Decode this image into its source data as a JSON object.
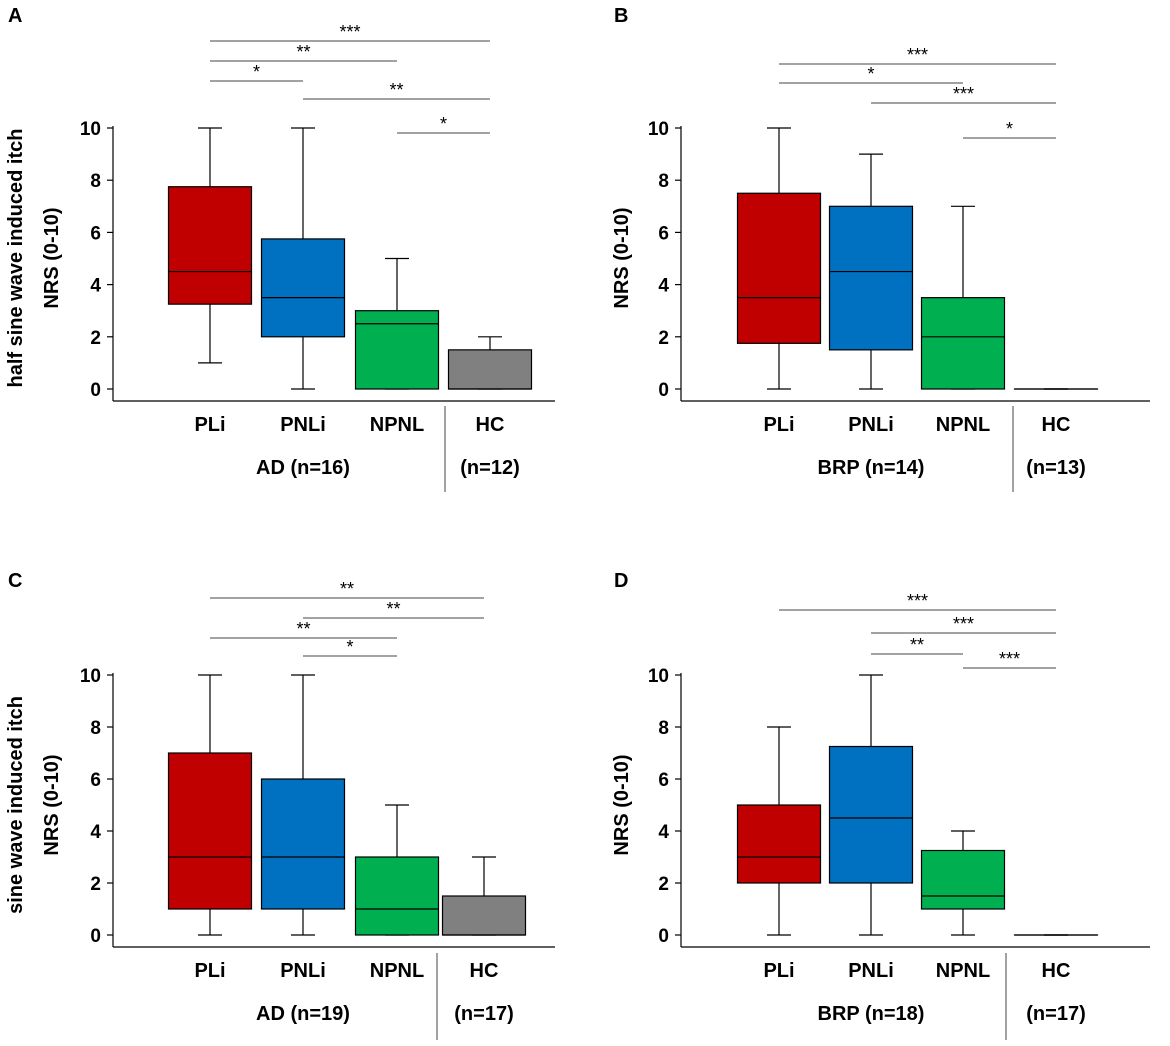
{
  "colors": {
    "PLi": "#c00000",
    "PNLi": "#0070c0",
    "NPNL": "#00b050",
    "HC": "#808080",
    "line": "#000000",
    "sig_line": "#444444"
  },
  "chart_data": [
    {
      "id": "A",
      "panel_label": "A",
      "type": "box",
      "ylabel_outer": "half sine wave induced itch",
      "ylabel": "NRS (0-10)",
      "ylim": [
        0,
        10
      ],
      "yticks": [
        "0",
        "2",
        "4",
        "6",
        "8",
        "10"
      ],
      "categories": [
        "PLi",
        "PNLi",
        "NPNL",
        "HC"
      ],
      "group_label": "AD (n=16)",
      "hc_label": "(n=12)",
      "boxes": [
        {
          "name": "PLi",
          "min": 1,
          "q1": 3.25,
          "median": 4.5,
          "q3": 7.75,
          "max": 10
        },
        {
          "name": "PNLi",
          "min": 0,
          "q1": 2,
          "median": 3.5,
          "q3": 5.75,
          "max": 10
        },
        {
          "name": "NPNL",
          "min": 0,
          "q1": 0,
          "median": 2.5,
          "q3": 3,
          "max": 5
        },
        {
          "name": "HC",
          "min": 0,
          "q1": 0,
          "median": 0,
          "q3": 1.5,
          "max": 2
        }
      ],
      "significance": [
        {
          "from": "PLi",
          "to": "HC",
          "label": "***"
        },
        {
          "from": "PLi",
          "to": "NPNL",
          "label": "**"
        },
        {
          "from": "PLi",
          "to": "PNLi",
          "label": "*"
        },
        {
          "from": "PNLi",
          "to": "HC",
          "label": "**"
        },
        {
          "from": "NPNL",
          "to": "HC",
          "label": "*"
        }
      ]
    },
    {
      "id": "B",
      "panel_label": "B",
      "type": "box",
      "ylabel": "NRS (0-10)",
      "ylim": [
        0,
        10
      ],
      "yticks": [
        "0",
        "2",
        "4",
        "6",
        "8",
        "10"
      ],
      "categories": [
        "PLi",
        "PNLi",
        "NPNL",
        "HC"
      ],
      "group_label": "BRP (n=14)",
      "hc_label": "(n=13)",
      "boxes": [
        {
          "name": "PLi",
          "min": 0,
          "q1": 1.75,
          "median": 3.5,
          "q3": 7.5,
          "max": 10
        },
        {
          "name": "PNLi",
          "min": 0,
          "q1": 1.5,
          "median": 4.5,
          "q3": 7,
          "max": 9
        },
        {
          "name": "NPNL",
          "min": 0,
          "q1": 0,
          "median": 2,
          "q3": 3.5,
          "max": 7
        },
        {
          "name": "HC",
          "min": 0,
          "q1": 0,
          "median": 0,
          "q3": 0,
          "max": 0
        }
      ],
      "significance": [
        {
          "from": "PLi",
          "to": "HC",
          "label": "***"
        },
        {
          "from": "PLi",
          "to": "NPNL",
          "label": "*"
        },
        {
          "from": "PNLi",
          "to": "HC",
          "label": "***"
        },
        {
          "from": "NPNL",
          "to": "HC",
          "label": "*"
        }
      ]
    },
    {
      "id": "C",
      "panel_label": "C",
      "type": "box",
      "ylabel_outer": "sine wave induced itch",
      "ylabel": "NRS (0-10)",
      "ylim": [
        0,
        10
      ],
      "yticks": [
        "0",
        "2",
        "4",
        "6",
        "8",
        "10"
      ],
      "categories": [
        "PLi",
        "PNLi",
        "NPNL",
        "HC"
      ],
      "group_label": "AD (n=19)",
      "hc_label": "(n=17)",
      "boxes": [
        {
          "name": "PLi",
          "min": 0,
          "q1": 1,
          "median": 3,
          "q3": 7,
          "max": 10
        },
        {
          "name": "PNLi",
          "min": 0,
          "q1": 1,
          "median": 3,
          "q3": 6,
          "max": 10
        },
        {
          "name": "NPNL",
          "min": 0,
          "q1": 0,
          "median": 1,
          "q3": 3,
          "max": 5
        },
        {
          "name": "HC",
          "min": 0,
          "q1": 0,
          "median": 0,
          "q3": 1.5,
          "max": 3
        }
      ],
      "significance": [
        {
          "from": "PLi",
          "to": "HC",
          "label": "**"
        },
        {
          "from": "PNLi",
          "to": "HC",
          "label": "**"
        },
        {
          "from": "PLi",
          "to": "NPNL",
          "label": "**"
        },
        {
          "from": "PNLi",
          "to": "NPNL",
          "label": "*"
        }
      ]
    },
    {
      "id": "D",
      "panel_label": "D",
      "type": "box",
      "ylabel": "NRS (0-10)",
      "ylim": [
        0,
        10
      ],
      "yticks": [
        "0",
        "2",
        "4",
        "6",
        "8",
        "10"
      ],
      "categories": [
        "PLi",
        "PNLi",
        "NPNL",
        "HC"
      ],
      "group_label": "BRP (n=18)",
      "hc_label": "(n=17)",
      "boxes": [
        {
          "name": "PLi",
          "min": 0,
          "q1": 2,
          "median": 3,
          "q3": 5,
          "max": 8
        },
        {
          "name": "PNLi",
          "min": 0,
          "q1": 2,
          "median": 4.5,
          "q3": 7.25,
          "max": 10
        },
        {
          "name": "NPNL",
          "min": 0,
          "q1": 1,
          "median": 1.5,
          "q3": 3.25,
          "max": 4
        },
        {
          "name": "HC",
          "min": 0,
          "q1": 0,
          "median": 0,
          "q3": 0,
          "max": 0
        }
      ],
      "significance": [
        {
          "from": "PLi",
          "to": "HC",
          "label": "***"
        },
        {
          "from": "PNLi",
          "to": "HC",
          "label": "***"
        },
        {
          "from": "PNLi",
          "to": "NPNL",
          "label": "**"
        },
        {
          "from": "NPNL",
          "to": "HC",
          "label": "***"
        }
      ]
    }
  ]
}
